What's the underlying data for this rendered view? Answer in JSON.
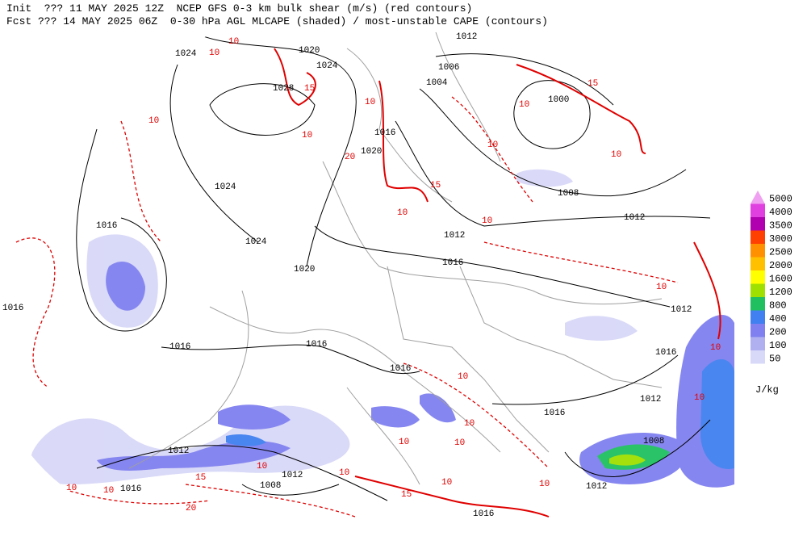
{
  "header": {
    "line1": "Init  ??? 11 MAY 2025 12Z  NCEP GFS 0-3 km bulk shear (m/s) (red contours)",
    "line2": "Fcst ??? 14 MAY 2025 06Z  0-30 hPa AGL MLCAPE (shaded) / most-unstable CAPE (contours)"
  },
  "legend": {
    "levels": [
      5000,
      4000,
      3500,
      3000,
      2500,
      2000,
      1600,
      1200,
      800,
      400,
      200,
      100,
      50
    ],
    "colors": [
      "#f0a0f0",
      "#e040e0",
      "#b000b0",
      "#ff4000",
      "#ff9000",
      "#ffc000",
      "#ffff00",
      "#a0e000",
      "#20c060",
      "#4080f0",
      "#8080f0",
      "#b0b0f0",
      "#d8d8f8"
    ],
    "unit": "J/kg"
  },
  "isobar_labels": [
    1012,
    1020,
    1024,
    1024,
    1006,
    1004,
    1028,
    1000,
    1016,
    1020,
    1024,
    1008,
    1012,
    1016,
    1024,
    1012,
    1016,
    1020,
    1016,
    1012,
    1016,
    1016,
    1016,
    1016,
    1012,
    1016,
    1012,
    1008,
    1012,
    1008,
    1016,
    1012,
    1016
  ],
  "shear_labels": [
    10,
    10,
    15,
    10,
    10,
    10,
    10,
    10,
    15,
    10,
    20,
    15,
    10,
    10,
    10,
    10,
    10,
    10,
    10,
    10,
    10,
    10,
    10,
    10,
    15,
    10,
    10,
    20,
    10,
    15
  ]
}
